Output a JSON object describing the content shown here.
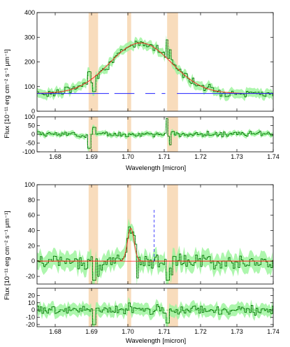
{
  "chart_data": [
    {
      "type": "line",
      "panel": "top-main",
      "ylabel": "Flux [10⁻¹¹ erg cm⁻² s⁻¹ μm⁻¹]",
      "xlim": [
        1.675,
        1.74
      ],
      "ylim": [
        0,
        400
      ],
      "yticks": [
        0,
        100,
        200,
        300,
        400
      ],
      "shaded_regions": [
        [
          1.6892,
          1.6918
        ],
        [
          1.6998,
          1.7009
        ],
        [
          1.7108,
          1.7138
        ]
      ],
      "gaussian": {
        "amplitude": 205,
        "center": 1.7035,
        "sigma": 0.0085,
        "baseline": 72
      },
      "continuum_y": 72,
      "continuum_gaps": [
        [
          1.6948,
          1.6963
        ],
        [
          1.7018,
          1.7048
        ],
        [
          1.7075,
          1.7093
        ],
        [
          1.7103,
          1.7135
        ]
      ],
      "colors": {
        "data": "#005000",
        "error": "#9ff59f",
        "model": "#ff2020",
        "continuum": "#2020ff",
        "shade": "#f8dcbc"
      },
      "spikes": [
        [
          1.6892,
          160
        ],
        [
          1.6905,
          80
        ],
        [
          1.7105,
          290
        ],
        [
          1.7115,
          250
        ]
      ]
    },
    {
      "type": "line",
      "panel": "top-residual",
      "xlabel": "Wavelength [micron]",
      "xlim": [
        1.675,
        1.74
      ],
      "ylim": [
        -100,
        100
      ],
      "yticks": [
        -100,
        -50,
        0,
        50,
        100
      ],
      "xticks": [
        1.68,
        1.69,
        1.7,
        1.71,
        1.72,
        1.73,
        1.74
      ],
      "xtick_labels": [
        "1.68",
        "1.69",
        "1.70",
        "1.71",
        "1.72",
        "1.73",
        "1.74"
      ],
      "shaded_regions": [
        [
          1.6892,
          1.6918
        ],
        [
          1.6998,
          1.7009
        ],
        [
          1.7108,
          1.7138
        ]
      ],
      "spikes": [
        [
          1.6892,
          -80
        ],
        [
          1.6905,
          40
        ],
        [
          1.7105,
          90
        ],
        [
          1.7115,
          -60
        ]
      ]
    },
    {
      "type": "line",
      "panel": "bottom-main",
      "ylabel": "Flux [10⁻¹¹ erg cm⁻² s⁻¹ μm⁻¹]",
      "xlim": [
        1.675,
        1.74
      ],
      "ylim": [
        -30,
        100
      ],
      "yticks": [
        -20,
        0,
        20,
        40,
        60,
        80,
        100
      ],
      "shaded_regions": [
        [
          1.6892,
          1.6918
        ],
        [
          1.6998,
          1.7009
        ],
        [
          1.7108,
          1.7138
        ]
      ],
      "gaussian": {
        "amplitude": 43,
        "center": 1.7008,
        "sigma": 0.0009,
        "baseline": 0
      },
      "vertical_line_x": 1.7072,
      "spikes": [
        [
          1.6905,
          -25
        ],
        [
          1.6915,
          -20
        ],
        [
          1.6998,
          30
        ],
        [
          1.7003,
          45
        ],
        [
          1.7025,
          -22
        ],
        [
          1.7108,
          -25
        ],
        [
          1.7118,
          -18
        ]
      ]
    },
    {
      "type": "line",
      "panel": "bottom-residual",
      "xlabel": "Wavelength [micron]",
      "xlim": [
        1.675,
        1.74
      ],
      "ylim": [
        -23,
        30
      ],
      "yticks": [
        -20,
        -10,
        0,
        10,
        20
      ],
      "xticks": [
        1.68,
        1.69,
        1.7,
        1.71,
        1.72,
        1.73,
        1.74
      ],
      "xtick_labels": [
        "1.68",
        "1.69",
        "1.70",
        "1.71",
        "1.72",
        "1.73",
        "1.74"
      ],
      "shaded_regions": [
        [
          1.6892,
          1.6918
        ],
        [
          1.6998,
          1.7009
        ],
        [
          1.7108,
          1.7138
        ]
      ],
      "spikes": [
        [
          1.6905,
          -20
        ],
        [
          1.7003,
          10
        ],
        [
          1.7108,
          -18
        ]
      ]
    }
  ]
}
